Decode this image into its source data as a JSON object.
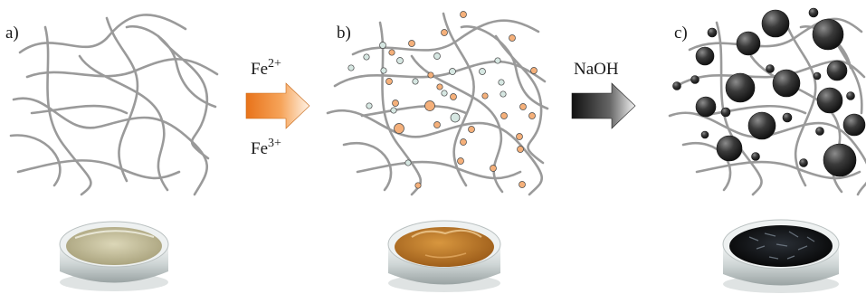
{
  "panels": {
    "a": {
      "label": "a)"
    },
    "b": {
      "label": "b)"
    },
    "c": {
      "label": "c)"
    }
  },
  "arrow1": {
    "top_label": {
      "base": "Fe",
      "sup": "2+"
    },
    "bottom_label": {
      "base": "Fe",
      "sup": "3+"
    },
    "color": "#f08a2a"
  },
  "arrow2": {
    "label": "NaOH",
    "color": "#2a2a2a"
  },
  "colors": {
    "polymer_chain": "#9a9a9a",
    "fe2_ion": "#d6e7e2",
    "fe3_ion": "#f5b07a",
    "nanoparticle": "#2b2b2b",
    "dish_clear": "#c9c3a0",
    "dish_orange": "#c07a2a",
    "dish_black": "#141414"
  },
  "icons": {
    "dish_a": "petri-dish-clear-gel-icon",
    "dish_b": "petri-dish-orange-gel-icon",
    "dish_c": "petri-dish-black-gel-icon"
  }
}
